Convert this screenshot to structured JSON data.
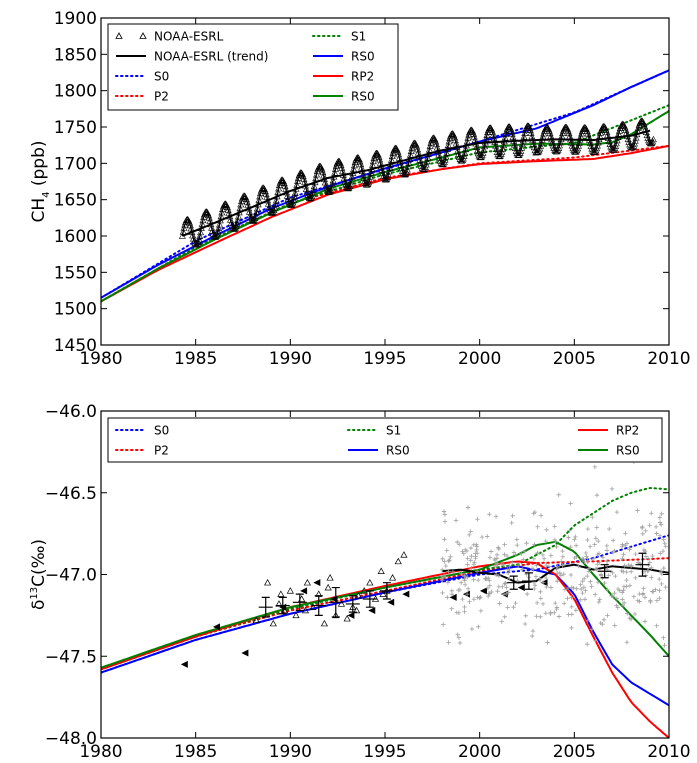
{
  "colors": {
    "S0": "#0000ff",
    "P2": "#ff0000",
    "S1": "#008000",
    "RS0_blue": "#0000ff",
    "RP2": "#ff0000",
    "RS0_green": "#008000",
    "obs": "#000000",
    "obs_gray": "#a0a0a0"
  },
  "chart_data": [
    {
      "type": "line",
      "xlim": [
        1980,
        2010
      ],
      "ylim": [
        1450,
        1900
      ],
      "xticks": [
        "1980",
        "1985",
        "1990",
        "1995",
        "2000",
        "2005",
        "2010"
      ],
      "yticks": [
        "1450",
        "1500",
        "1550",
        "1600",
        "1650",
        "1700",
        "1750",
        "1800",
        "1850",
        "1900"
      ],
      "ylabel_main": "CH",
      "ylabel_sub": "4",
      "ylabel_unit": " (ppb)",
      "legend": {
        "placement": "top-left",
        "entries": [
          "NOAA-ESRL",
          "NOAA-ESRL (trend)",
          "S0",
          "P2",
          "S1",
          "RS0",
          "RP2",
          "RS0"
        ]
      },
      "series": [
        {
          "name": "S0",
          "style": "dotted",
          "color_key": "S0",
          "x": [
            1980,
            1985,
            1990,
            1995,
            2000,
            2005,
            2010
          ],
          "y": [
            1515,
            1593,
            1653,
            1692,
            1730,
            1770,
            1828
          ]
        },
        {
          "name": "P2",
          "style": "dotted",
          "color_key": "P2",
          "x": [
            1980,
            1985,
            1990,
            1995,
            2000,
            2005,
            2010
          ],
          "y": [
            1510,
            1585,
            1645,
            1680,
            1700,
            1708,
            1724
          ]
        },
        {
          "name": "S1",
          "style": "dotted",
          "color_key": "S1",
          "x": [
            1980,
            1985,
            1990,
            1995,
            2000,
            2005,
            2010
          ],
          "y": [
            1510,
            1585,
            1645,
            1685,
            1715,
            1728,
            1780
          ]
        },
        {
          "name": "RS0",
          "style": "solid",
          "color_key": "RS0_blue",
          "x": [
            1980,
            1983,
            1986,
            1989,
            1992,
            1995,
            1998,
            2000,
            2003,
            2006,
            2008,
            2010
          ],
          "y": [
            1515,
            1560,
            1600,
            1638,
            1668,
            1693,
            1715,
            1730,
            1748,
            1780,
            1805,
            1828
          ]
        },
        {
          "name": "RP2",
          "style": "solid",
          "color_key": "RP2",
          "x": [
            1980,
            1983,
            1986,
            1989,
            1992,
            1995,
            1998,
            2000,
            2003,
            2006,
            2008,
            2010
          ],
          "y": [
            1510,
            1553,
            1590,
            1626,
            1657,
            1678,
            1692,
            1699,
            1703,
            1706,
            1714,
            1724
          ]
        },
        {
          "name": "RS0",
          "style": "solid",
          "color_key": "RS0_green",
          "x": [
            1980,
            1983,
            1986,
            1989,
            1992,
            1995,
            1998,
            2000,
            2003,
            2006,
            2007,
            2008,
            2009,
            2010
          ],
          "y": [
            1510,
            1555,
            1595,
            1632,
            1665,
            1688,
            1708,
            1722,
            1727,
            1726,
            1729,
            1740,
            1756,
            1772
          ]
        },
        {
          "name": "NOAA-ESRL (trend)",
          "style": "solid",
          "color_key": "obs",
          "x": [
            1984.3,
            1986,
            1988,
            1990,
            1992,
            1994,
            1996,
            1998,
            2000,
            2002,
            2004,
            2006,
            2008,
            2009
          ],
          "y": [
            1600,
            1618,
            1640,
            1662,
            1680,
            1690,
            1704,
            1718,
            1728,
            1731,
            1733,
            1732,
            1738,
            1745
          ]
        },
        {
          "name": "NOAA-ESRL",
          "style": "seasonal",
          "color_key": "obs",
          "x_start": 1984.3,
          "x_end": 2009.2,
          "amplitude": 20,
          "trend_x": [
            1984.3,
            1986,
            1988,
            1990,
            1992,
            1994,
            1996,
            1998,
            2000,
            2002,
            2004,
            2006,
            2008,
            2009.2
          ],
          "trend_y": [
            1600,
            1618,
            1640,
            1662,
            1680,
            1690,
            1704,
            1718,
            1728,
            1731,
            1733,
            1732,
            1738,
            1745
          ]
        }
      ]
    },
    {
      "type": "line",
      "xlim": [
        1980,
        2010
      ],
      "ylim": [
        -48.0,
        -46.0
      ],
      "xticks": [
        "1980",
        "1985",
        "1990",
        "1995",
        "2000",
        "2005",
        "2010"
      ],
      "yticks": [
        "−48.0",
        "−47.5",
        "−47.0",
        "−46.5",
        "−46.0"
      ],
      "ylabel_main": "δ",
      "ylabel_sup": "13",
      "ylabel_unit": "C(‰)",
      "legend": {
        "placement": "top",
        "entries": [
          "S0",
          "P2",
          "S1",
          "RS0",
          "RP2",
          "RS0"
        ]
      },
      "series": [
        {
          "name": "S0",
          "style": "dotted",
          "color_key": "S0",
          "x": [
            1980,
            1985,
            1990,
            1995,
            2000,
            2003,
            2006,
            2010
          ],
          "y": [
            -47.6,
            -47.4,
            -47.24,
            -47.11,
            -47.0,
            -46.97,
            -46.9,
            -46.76
          ]
        },
        {
          "name": "P2",
          "style": "dotted",
          "color_key": "P2",
          "x": [
            1980,
            1985,
            1990,
            1995,
            2000,
            2003,
            2006,
            2010
          ],
          "y": [
            -47.58,
            -47.38,
            -47.22,
            -47.1,
            -46.98,
            -46.93,
            -46.92,
            -46.9
          ]
        },
        {
          "name": "S1",
          "style": "dotted",
          "color_key": "S1",
          "x": [
            1980,
            1985,
            1990,
            1995,
            2000,
            2002,
            2004,
            2005,
            2007,
            2008,
            2009,
            2010
          ],
          "y": [
            -47.58,
            -47.38,
            -47.21,
            -47.08,
            -46.97,
            -46.94,
            -46.82,
            -46.7,
            -46.55,
            -46.5,
            -46.47,
            -46.48
          ]
        },
        {
          "name": "RS0",
          "style": "solid",
          "color_key": "RS0_blue",
          "x": [
            1980,
            1985,
            1990,
            1995,
            2000,
            2002,
            2004,
            2005,
            2006,
            2007,
            2008,
            2009,
            2010
          ],
          "y": [
            -47.6,
            -47.4,
            -47.24,
            -47.11,
            -46.99,
            -46.95,
            -47.0,
            -47.12,
            -47.35,
            -47.55,
            -47.66,
            -47.73,
            -47.8
          ]
        },
        {
          "name": "RP2",
          "style": "solid",
          "color_key": "RP2",
          "x": [
            1980,
            1985,
            1990,
            1995,
            2000,
            2002,
            2003,
            2004,
            2005,
            2006,
            2007,
            2008,
            2009,
            2010
          ],
          "y": [
            -47.58,
            -47.38,
            -47.2,
            -47.07,
            -46.95,
            -46.92,
            -46.93,
            -47.0,
            -47.15,
            -47.38,
            -47.6,
            -47.78,
            -47.9,
            -48.0
          ]
        },
        {
          "name": "RS0",
          "style": "solid",
          "color_key": "RS0_green",
          "x": [
            1980,
            1985,
            1990,
            1995,
            2000,
            2002,
            2003,
            2004,
            2005,
            2006,
            2007,
            2008,
            2009,
            2010
          ],
          "y": [
            -47.57,
            -47.37,
            -47.2,
            -47.08,
            -46.97,
            -46.88,
            -46.82,
            -46.8,
            -46.86,
            -47.0,
            -47.13,
            -47.25,
            -47.37,
            -47.5
          ]
        },
        {
          "name": "NOAA (trend)",
          "style": "solid",
          "color_key": "obs",
          "x": [
            1998,
            1999,
            2000,
            2001,
            2002,
            2003,
            2004,
            2005,
            2006,
            2007,
            2008,
            2009,
            2010
          ],
          "y": [
            -46.98,
            -46.97,
            -46.99,
            -47.0,
            -47.05,
            -47.04,
            -46.96,
            -46.94,
            -46.97,
            -46.95,
            -46.96,
            -46.97,
            -46.99
          ]
        },
        {
          "name": "obs triangles",
          "style": "markers-triangle",
          "color_key": "obs",
          "x": [
            1988.2,
            1988.8,
            1989.1,
            1989.4,
            1989.7,
            1990.0,
            1990.3,
            1990.6,
            1990.9,
            1991.2,
            1991.5,
            1991.8,
            1992.1,
            1992.4,
            1992.7,
            1993.0,
            1993.3,
            1993.6,
            1993.9,
            1994.2,
            1994.5,
            1994.8,
            1995.1,
            1995.4,
            1995.7,
            1996.0,
            1989.5,
            1990.8,
            1992.0,
            1993.5,
            1994.9
          ],
          "y": [
            -47.28,
            -47.05,
            -47.3,
            -47.18,
            -47.22,
            -47.1,
            -47.25,
            -47.15,
            -47.05,
            -47.2,
            -47.12,
            -47.3,
            -47.02,
            -47.25,
            -47.18,
            -47.27,
            -47.2,
            -47.13,
            -47.1,
            -47.05,
            -47.15,
            -46.98,
            -47.1,
            -47.02,
            -46.92,
            -46.88,
            -47.12,
            -47.22,
            -47.08,
            -47.22,
            -47.12
          ]
        },
        {
          "name": "obs left triangles",
          "style": "markers-ltriangle",
          "color_key": "obs",
          "x": [
            1984.4,
            1986.1,
            1987.6,
            1989.6,
            1990.7,
            1991.4,
            1992.3,
            1993.2,
            1994.3,
            1995.3,
            1996.1,
            1998.6,
            1999.3,
            2000.2,
            2001.3,
            2002.2,
            2003.4
          ],
          "y": [
            -47.55,
            -47.32,
            -47.48,
            -47.2,
            -47.1,
            -47.05,
            -47.15,
            -47.25,
            -47.22,
            -47.17,
            -47.12,
            -47.14,
            -47.12,
            -47.1,
            -47.12,
            -47.08,
            -47.05
          ]
        },
        {
          "name": "gray scatter",
          "style": "markers-plus",
          "color_key": "obs_gray",
          "x_start": 1998.0,
          "x_end": 2010.0,
          "count": 420,
          "center": -47.0,
          "spread": 0.22
        },
        {
          "name": "error bars",
          "style": "errorbars",
          "color_key": "obs",
          "x": [
            1988.7,
            1989.6,
            1990.5,
            1991.5,
            1992.4,
            1993.3,
            1994.2,
            1995.1,
            2001.8,
            2002.6,
            2006.6,
            2008.6
          ],
          "y": [
            -47.2,
            -47.19,
            -47.17,
            -47.19,
            -47.17,
            -47.18,
            -47.15,
            -47.1,
            -47.05,
            -47.04,
            -46.98,
            -46.94
          ],
          "err": [
            0.06,
            0.05,
            0.05,
            0.06,
            0.09,
            0.05,
            0.05,
            0.05,
            0.04,
            0.05,
            0.04,
            0.07
          ]
        }
      ]
    }
  ]
}
